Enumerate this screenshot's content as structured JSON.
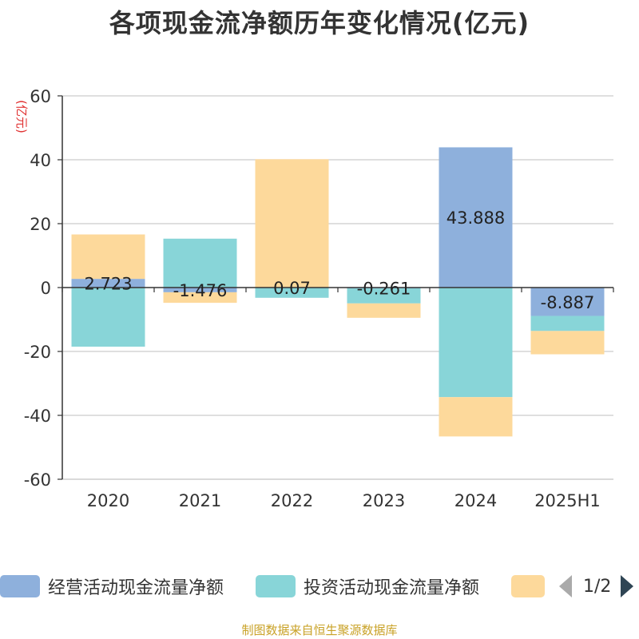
{
  "title": "各项现金流净额历年变化情况(亿元)",
  "footer": "制图数据来自恒生聚源数据库",
  "legend": {
    "page": "1/2"
  },
  "chart_data": {
    "type": "bar",
    "stacked": true,
    "unit_label": "(亿元)",
    "categories": [
      "2020",
      "2021",
      "2022",
      "2023",
      "2024",
      "2025H1"
    ],
    "ylim": [
      -60,
      60
    ],
    "yticks": [
      60,
      40,
      20,
      0,
      -20,
      -40,
      -60
    ],
    "grid": true,
    "legend_position": "bottom",
    "series": [
      {
        "name": "经营活动现金流量净额",
        "color": "#8eb0dc",
        "values": [
          2.723,
          -1.476,
          0.07,
          -0.261,
          43.888,
          -8.887
        ],
        "labels": [
          "2.723",
          "-1.476",
          "0.07",
          "-0.261",
          "43.888",
          "-8.887"
        ]
      },
      {
        "name": "投资活动现金流量净额",
        "color": "#88d5d8",
        "values": [
          -18.5,
          15.3,
          -3.2,
          -4.7,
          -34.3,
          -4.7
        ]
      },
      {
        "name": "",
        "color": "#fdd99b",
        "values": [
          13.9,
          -3.3,
          40.1,
          -4.5,
          -12.3,
          -7.3
        ]
      }
    ]
  }
}
